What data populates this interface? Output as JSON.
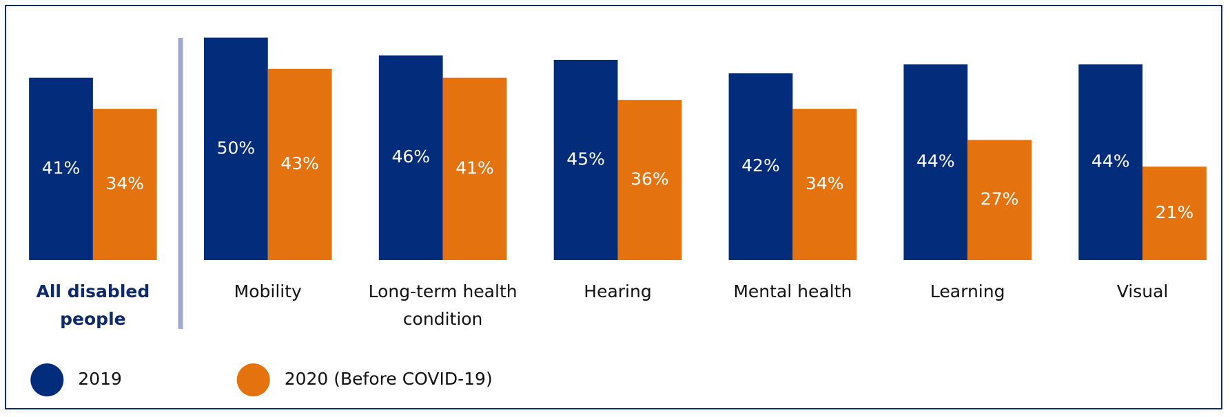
{
  "chart_data": {
    "type": "bar",
    "categories": [
      "All disabled people",
      "Mobility",
      "Long-term health condition",
      "Hearing",
      "Mental health",
      "Learning",
      "Visual"
    ],
    "series": [
      {
        "name": "2019",
        "color": "#032d7a",
        "values": [
          41,
          50,
          46,
          45,
          42,
          44,
          44
        ],
        "value_labels": [
          "41%",
          "50%",
          "46%",
          "45%",
          "42%",
          "44%",
          "44%"
        ]
      },
      {
        "name": "2020 (Before COVID-19)",
        "color": "#e3720f",
        "values": [
          34,
          43,
          41,
          36,
          34,
          27,
          21
        ],
        "value_labels": [
          "34%",
          "43%",
          "41%",
          "36%",
          "34%",
          "27%",
          "21%"
        ]
      }
    ]
  }
}
